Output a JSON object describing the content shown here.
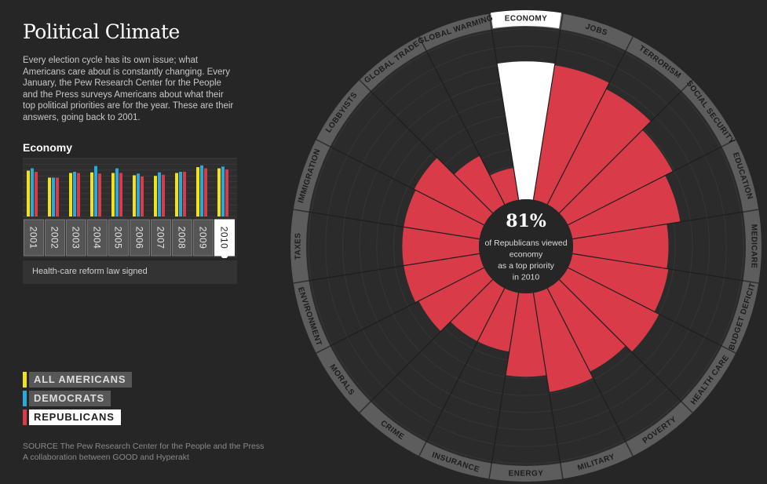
{
  "page": {
    "title": "Political Climate",
    "intro": "Every election cycle has its own issue; what Americans care about is constantly changing. Every January, the Pew Research Center for the People and the Press surveys Americans about what their top political priorities are for the year. These are their answers, going back to 2001.",
    "topic_label": "Economy",
    "event_note": "Health-care reform law signed",
    "source_line1": "SOURCE The Pew Research Center for the People and the Press",
    "source_line2": "A collaboration between GOOD and Hyperakt"
  },
  "legend": [
    {
      "key": "all",
      "label": "ALL AMERICANS",
      "color": "#f2e21a",
      "active": false
    },
    {
      "key": "dem",
      "label": "DEMOCRATS",
      "color": "#2aa9dc",
      "active": false
    },
    {
      "key": "rep",
      "label": "REPUBLICANS",
      "color": "#d93c48",
      "active": true
    }
  ],
  "colors": {
    "republicans": "#d93c48",
    "democrats": "#2aa9dc",
    "all_americans": "#f2e21a",
    "highlight": "#ffffff",
    "ring": "#5d5d5d",
    "dial": "#2b2b2b",
    "center": "#262626"
  },
  "center_label": {
    "value": "81%",
    "line1": "of Republicans viewed",
    "line2": "economy",
    "line3": "as a top priority",
    "line4": "in 2010"
  },
  "chart_data": [
    {
      "type": "bar",
      "categories": [
        "2001",
        "2002",
        "2003",
        "2004",
        "2005",
        "2006",
        "2007",
        "2008",
        "2009",
        "2010"
      ],
      "selected_category": "2010",
      "ylim": [
        0,
        100
      ],
      "series": [
        {
          "name": "All Americans",
          "color": "#f2e21a",
          "values": [
            79,
            67,
            75,
            76,
            75,
            71,
            70,
            75,
            85,
            83
          ]
        },
        {
          "name": "Democrats",
          "color": "#2aa9dc",
          "values": [
            83,
            67,
            77,
            87,
            83,
            74,
            76,
            77,
            88,
            86
          ]
        },
        {
          "name": "Republicans",
          "color": "#d93c48",
          "values": [
            77,
            67,
            75,
            74,
            75,
            69,
            72,
            77,
            83,
            81
          ]
        }
      ]
    },
    {
      "type": "bar",
      "polar": true,
      "series_name": "Republicans",
      "year": "2010",
      "highlight_category": "ECONOMY",
      "rlim": [
        0,
        100
      ],
      "categories": [
        "ECONOMY",
        "JOBS",
        "TERRORISM",
        "SOCIAL SECURITY",
        "EDUCATION",
        "MEDICARE",
        "BUDGET DEFICIT",
        "HEALTH CARE",
        "POVERTY",
        "MILITARY",
        "ENERGY",
        "INSURANCE",
        "CRIME",
        "MORALS",
        "ENVIRONMENT",
        "TAXES",
        "IMMIGRATION",
        "LOBBYISTS",
        "GLOBAL TRADE",
        "GLOBAL WARMING"
      ],
      "values": [
        81,
        80,
        76,
        69,
        64,
        56,
        57,
        60,
        55,
        59,
        49,
        35,
        35,
        43,
        45,
        45,
        45,
        46,
        32,
        19
      ]
    }
  ]
}
